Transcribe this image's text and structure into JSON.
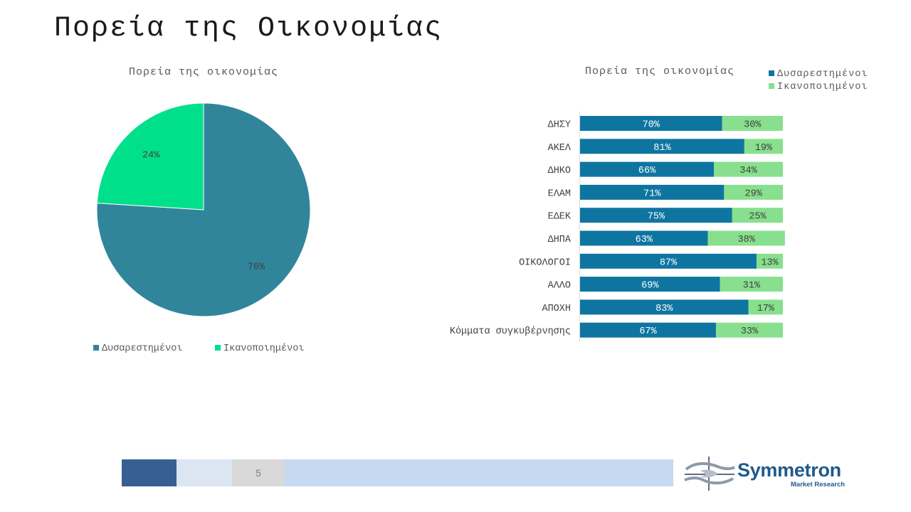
{
  "slide": {
    "title": "Πορεία της Οικονομίας",
    "page_number": "5"
  },
  "brand": {
    "name": "Symmetron",
    "tagline": "Market Research"
  },
  "colors": {
    "pie_dissatisfied": "#31859b",
    "pie_satisfied": "#00e08b",
    "bar_dissatisfied": "#0e75a1",
    "bar_satisfied": "#88e08e",
    "footer_dark": "#376092",
    "footer_light": "#dce6f2",
    "footer_bar": "#c6d9f0",
    "brand": "#1f5a8c"
  },
  "chart_data": [
    {
      "type": "pie",
      "title": "Πορεία της οικονομίας",
      "categories": [
        "Δυσαρεστημένοι",
        "Ικανοποιημένοι"
      ],
      "values": [
        76,
        24
      ],
      "data_labels": [
        "76%",
        "24%"
      ],
      "legend": [
        "Δυσαρεστημένοι",
        "Ικανοποιημένοι"
      ],
      "legend_position": "bottom"
    },
    {
      "type": "bar",
      "orientation": "horizontal",
      "stacked": "100%",
      "title": "Πορεία της οικονομίας",
      "categories": [
        "ΔΗΣΥ",
        "ΑΚΕΛ",
        "ΔΗΚΟ",
        "ΕΛΑΜ",
        "ΕΔΕΚ",
        "ΔΗΠΑ",
        "ΟΙΚΟΛΟΓΟΙ",
        "ΑΛΛΟ",
        "ΑΠΟΧΗ",
        "Κόμματα συγκυβέρνησης"
      ],
      "series": [
        {
          "name": "Δυσαρεστημένοι",
          "values": [
            70,
            81,
            66,
            71,
            75,
            63,
            87,
            69,
            83,
            67
          ],
          "labels": [
            "70%",
            "81%",
            "66%",
            "71%",
            "75%",
            "63%",
            "87%",
            "69%",
            "83%",
            "67%"
          ]
        },
        {
          "name": "Ικανοποιημένοι",
          "values": [
            30,
            19,
            34,
            29,
            25,
            38,
            13,
            31,
            17,
            33
          ],
          "labels": [
            "30%",
            "19%",
            "34%",
            "29%",
            "25%",
            "38%",
            "13%",
            "31%",
            "17%",
            "33%"
          ]
        }
      ],
      "xlim": [
        0,
        100
      ],
      "legend_position": "top-right"
    }
  ]
}
